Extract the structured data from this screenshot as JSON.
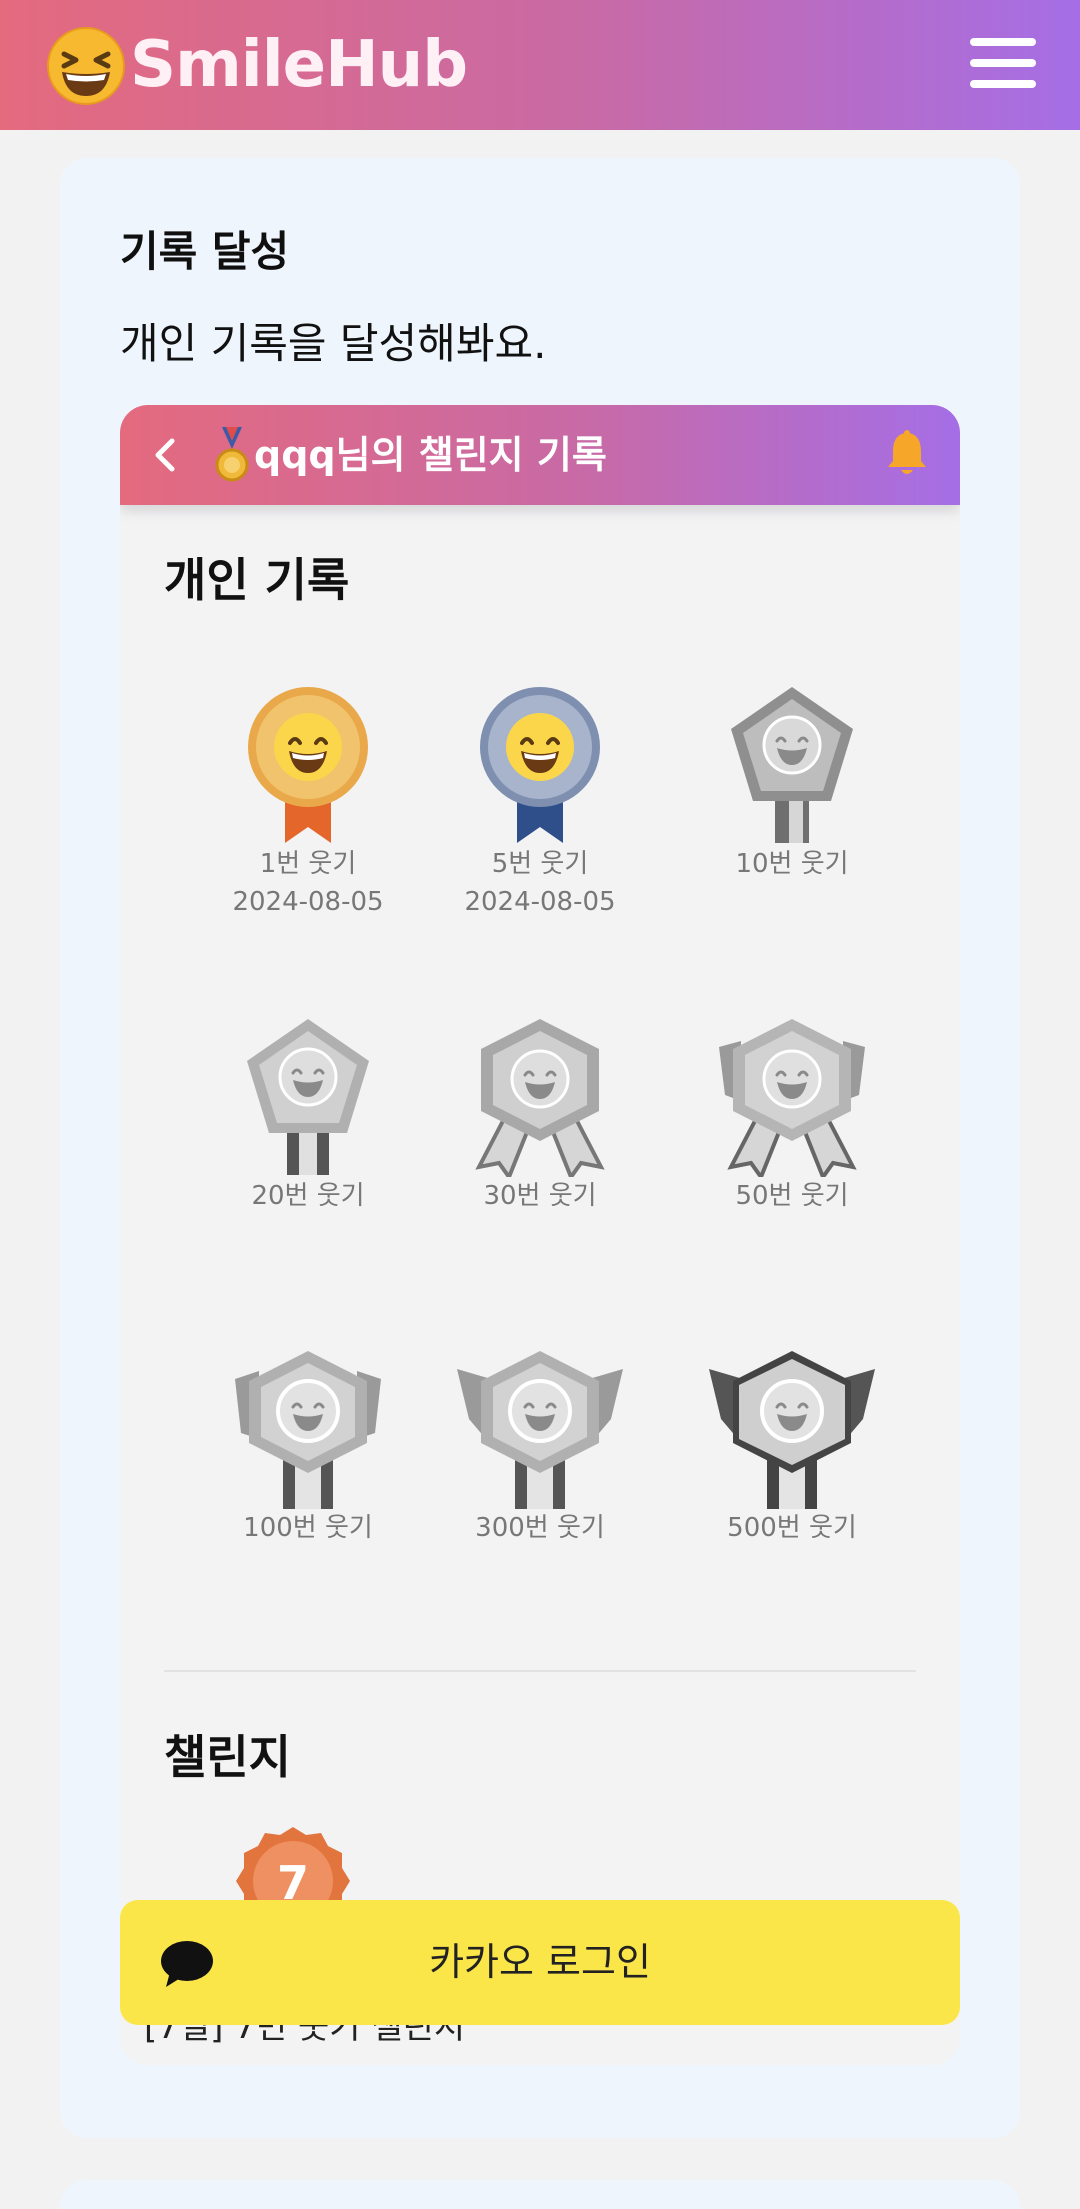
{
  "header": {
    "logo_text": "SmileHub",
    "logo_icon": "grinning-squinting-face-icon",
    "menu_icon": "hamburger-menu-icon"
  },
  "card": {
    "title": "기록 달성",
    "description": "개인 기록을 달성해봐요."
  },
  "phone": {
    "title": "qqq님의 챌린지 기록",
    "back_icon": "chevron-left-icon",
    "bell_icon": "bell-icon",
    "personal_section": "개인 기록",
    "badges": [
      {
        "label": "1번 웃기",
        "date": "2024-08-05",
        "earned": true
      },
      {
        "label": "5번 웃기",
        "date": "2024-08-05",
        "earned": true
      },
      {
        "label": "10번 웃기",
        "date": "",
        "earned": false
      },
      {
        "label": "20번 웃기",
        "date": "",
        "earned": false
      },
      {
        "label": "30번 웃기",
        "date": "",
        "earned": false
      },
      {
        "label": "50번 웃기",
        "date": "",
        "earned": false
      },
      {
        "label": "100번 웃기",
        "date": "",
        "earned": false
      },
      {
        "label": "300번 웃기",
        "date": "",
        "earned": false
      },
      {
        "label": "500번 웃기",
        "date": "",
        "earned": false
      }
    ],
    "challenge_section": "챌린지",
    "challenge_medal_number": "7",
    "challenge_item": "[7일] 7번 웃기 챌린지"
  },
  "kakao": {
    "label": "카카오 로그인"
  },
  "colors": {
    "header_start": "#e46a7e",
    "header_end": "#a56ee6",
    "kakao_yellow": "#fbe64a",
    "gold": "#e9a94a",
    "blue_ribbon": "#2f4f8a"
  }
}
